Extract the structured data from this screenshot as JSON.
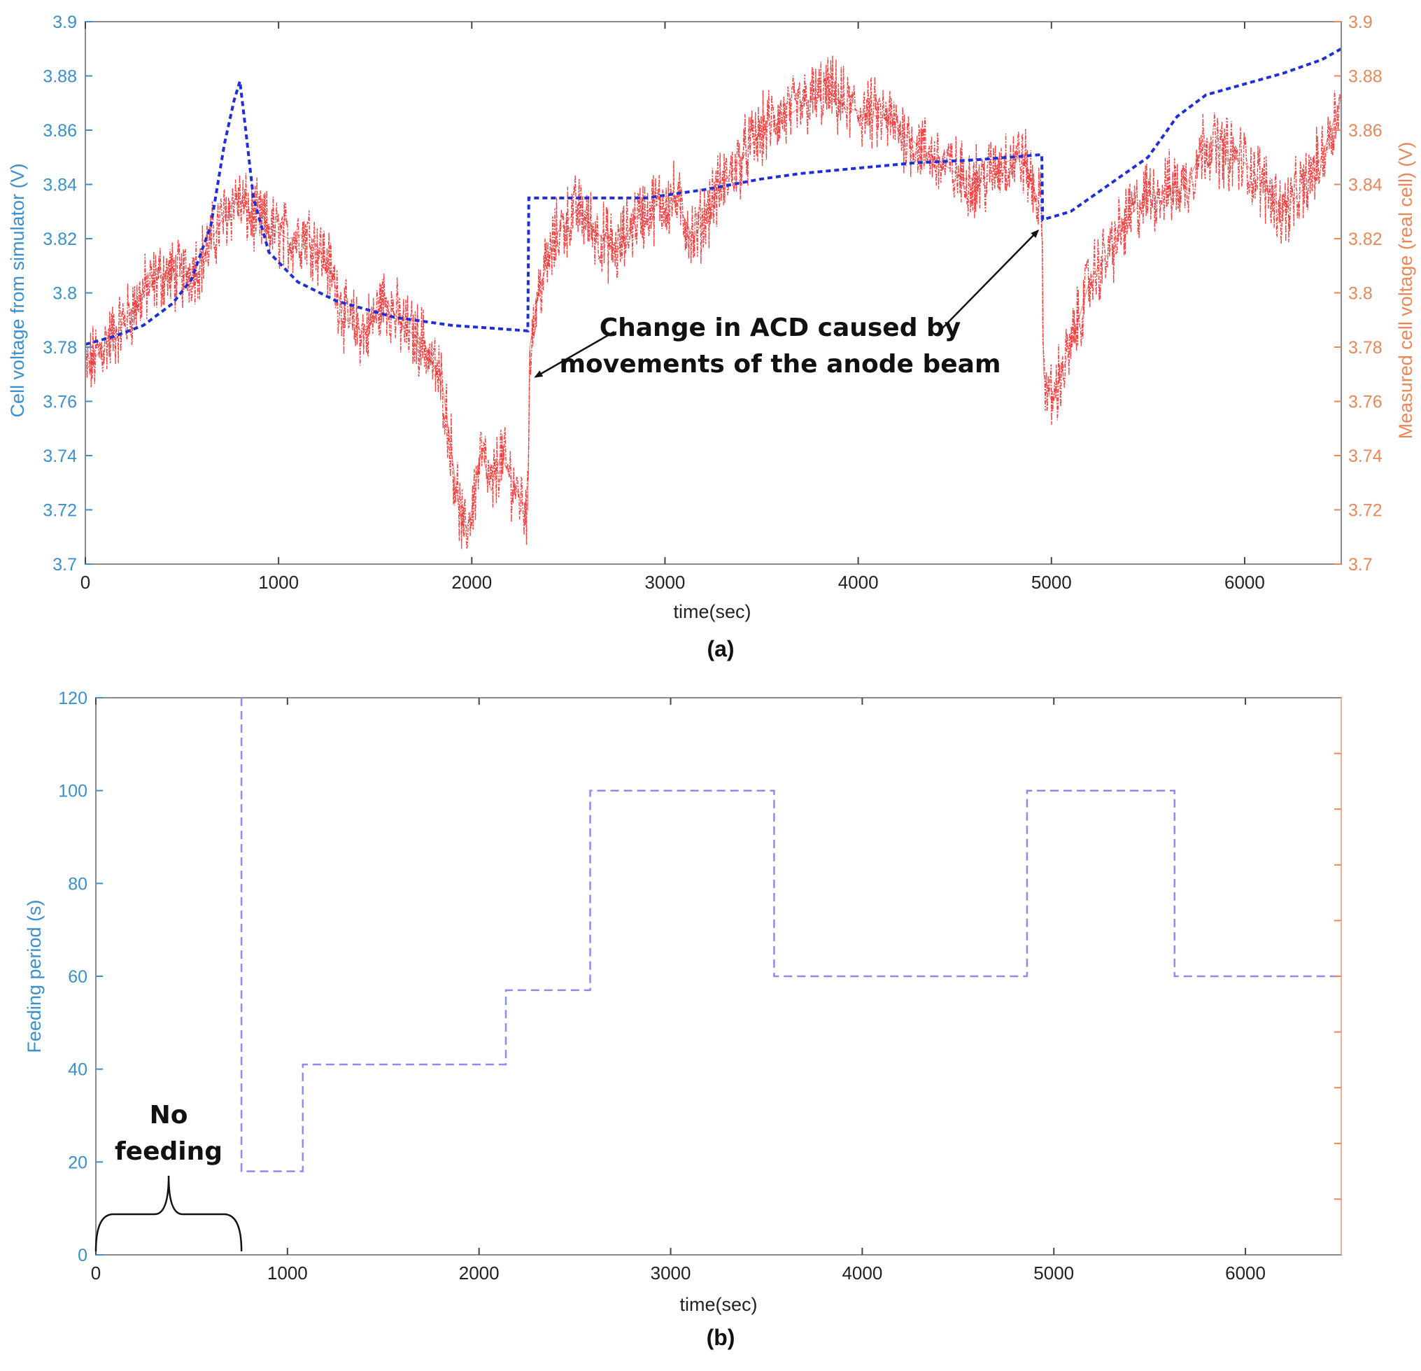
{
  "colors": {
    "left_axis": "#3d8fc9",
    "right_axis": "#e8885a",
    "simulator_line": "#1f2fd8",
    "measured_line": "#ee2222",
    "feeding_line": "#8a8cf0",
    "axis_frame": "#8c8c8c",
    "annotation": "#111111"
  },
  "chart_data": [
    {
      "type": "line",
      "panel_label": "(a)",
      "xlabel": "time(sec)",
      "ylabel_left": "Cell voltage from simulator (V)",
      "ylabel_right": "Measured cell voltage (real cell) (V)",
      "xlim": [
        0,
        6500
      ],
      "ylim_left": [
        3.7,
        3.9
      ],
      "ylim_right": [
        3.7,
        3.9
      ],
      "x_ticks": [
        "0",
        "1000",
        "2000",
        "3000",
        "4000",
        "5000",
        "6000"
      ],
      "y_ticks_left": [
        "3.7",
        "3.72",
        "3.74",
        "3.76",
        "3.78",
        "3.8",
        "3.82",
        "3.84",
        "3.86",
        "3.88",
        "3.9"
      ],
      "y_ticks_right": [
        "3.7",
        "3.72",
        "3.74",
        "3.76",
        "3.78",
        "3.8",
        "3.82",
        "3.84",
        "3.86",
        "3.88",
        "3.9"
      ],
      "grid": false,
      "annotation": {
        "lines": [
          "Change in ACD caused by",
          "movements of the anode beam"
        ],
        "arrow_targets": [
          [
            2300,
            3.769
          ],
          [
            4960,
            3.823
          ]
        ]
      },
      "series": [
        {
          "axis": "left",
          "style": "dotted",
          "x": [
            0,
            150,
            300,
            450,
            550,
            650,
            720,
            770,
            800,
            830,
            870,
            950,
            1100,
            1300,
            1600,
            1900,
            2100,
            2290,
            2295,
            2600,
            2900,
            3200,
            3500,
            3700,
            4000,
            4300,
            4600,
            4950,
            4955,
            5100,
            5300,
            5500,
            5650,
            5800,
            6000,
            6200,
            6400,
            6500
          ],
          "values": [
            3.781,
            3.784,
            3.788,
            3.796,
            3.805,
            3.825,
            3.855,
            3.871,
            3.878,
            3.86,
            3.835,
            3.815,
            3.804,
            3.797,
            3.791,
            3.788,
            3.787,
            3.786,
            3.835,
            3.835,
            3.835,
            3.838,
            3.842,
            3.844,
            3.846,
            3.848,
            3.849,
            3.851,
            3.827,
            3.83,
            3.84,
            3.85,
            3.865,
            3.873,
            3.877,
            3.881,
            3.886,
            3.89
          ]
        },
        {
          "axis": "right",
          "style": "dash-dot noisy",
          "x": [
            0,
            100,
            200,
            300,
            400,
            500,
            600,
            700,
            780,
            850,
            950,
            1050,
            1150,
            1250,
            1350,
            1450,
            1550,
            1650,
            1750,
            1850,
            1920,
            1960,
            2000,
            2050,
            2100,
            2150,
            2200,
            2250,
            2290,
            2300,
            2350,
            2450,
            2550,
            2650,
            2750,
            2850,
            2950,
            3050,
            3150,
            3250,
            3350,
            3450,
            3550,
            3650,
            3750,
            3850,
            3950,
            4050,
            4150,
            4250,
            4350,
            4450,
            4550,
            4650,
            4750,
            4850,
            4950,
            4960,
            5000,
            5100,
            5200,
            5300,
            5400,
            5500,
            5600,
            5700,
            5800,
            5900,
            6000,
            6100,
            6200,
            6300,
            6400,
            6500
          ],
          "values": [
            3.771,
            3.781,
            3.789,
            3.8,
            3.807,
            3.806,
            3.812,
            3.826,
            3.835,
            3.829,
            3.824,
            3.82,
            3.822,
            3.812,
            3.79,
            3.785,
            3.798,
            3.787,
            3.782,
            3.765,
            3.728,
            3.71,
            3.72,
            3.742,
            3.727,
            3.74,
            3.732,
            3.724,
            3.72,
            3.78,
            3.802,
            3.823,
            3.831,
            3.822,
            3.815,
            3.828,
            3.832,
            3.835,
            3.82,
            3.835,
            3.845,
            3.855,
            3.863,
            3.866,
            3.871,
            3.874,
            3.868,
            3.866,
            3.864,
            3.858,
            3.852,
            3.847,
            3.842,
            3.842,
            3.848,
            3.85,
            3.83,
            3.77,
            3.76,
            3.78,
            3.805,
            3.815,
            3.828,
            3.836,
            3.838,
            3.84,
            3.856,
            3.852,
            3.848,
            3.84,
            3.83,
            3.838,
            3.85,
            3.872
          ]
        }
      ]
    },
    {
      "type": "line",
      "panel_label": "(b)",
      "xlabel": "time(sec)",
      "ylabel": "Feeding period (s)",
      "xlim": [
        0,
        6500
      ],
      "ylim": [
        0,
        120
      ],
      "x_ticks": [
        "0",
        "1000",
        "2000",
        "3000",
        "4000",
        "5000",
        "6000"
      ],
      "y_ticks": [
        "0",
        "20",
        "40",
        "60",
        "80",
        "100",
        "120"
      ],
      "grid": false,
      "annotation": {
        "lines": [
          "No",
          "feeding"
        ],
        "brace_range": [
          0,
          760
        ]
      },
      "series": [
        {
          "style": "dashed step",
          "x": [
            760,
            760,
            1080,
            1080,
            2140,
            2140,
            2580,
            2580,
            3540,
            3540,
            4860,
            4860,
            5630,
            5630,
            6500
          ],
          "values": [
            120,
            18,
            18,
            41,
            41,
            57,
            57,
            100,
            100,
            60,
            60,
            100,
            100,
            60,
            60
          ]
        }
      ]
    }
  ]
}
